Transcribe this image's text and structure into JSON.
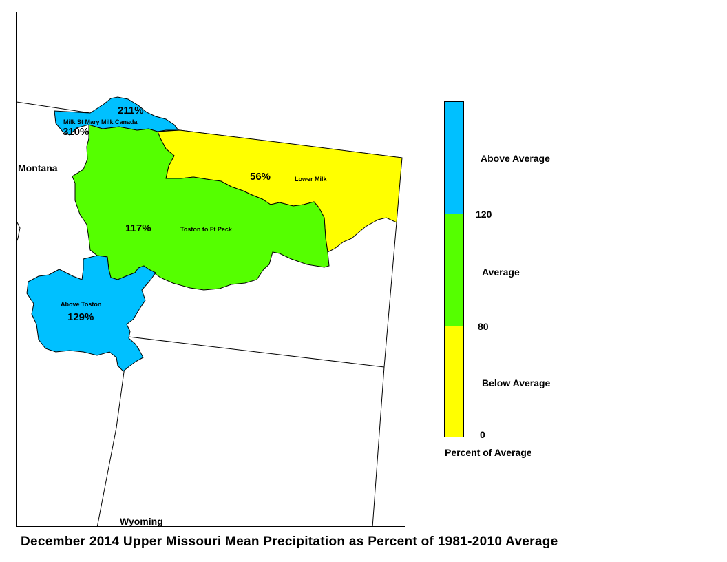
{
  "title": "December 2014 Upper Missouri Mean Precipitation as Percent of 1981-2010 Average",
  "states": {
    "montana": "Montana",
    "wyoming": "Wyoming"
  },
  "basins": {
    "milk_st_mary": {
      "name": "Milk St Mary Milk Canada",
      "pct_a": "211%",
      "pct_b": "310%",
      "class": "above"
    },
    "lower_milk": {
      "name": "Lower Milk",
      "pct": "56%",
      "class": "below"
    },
    "toston_ft_peck": {
      "name": "Toston to Ft Peck",
      "pct": "117%",
      "class": "average"
    },
    "above_toston": {
      "name": "Above Toston",
      "pct": "129%",
      "class": "above"
    }
  },
  "legend": {
    "title": "Percent of Average",
    "categories": [
      {
        "label": "Above Average",
        "color": "#00c0ff"
      },
      {
        "label": "Average",
        "color": "#55ff00"
      },
      {
        "label": "Below Average",
        "color": "#ffff00"
      }
    ],
    "breaks": [
      "120",
      "80",
      "0"
    ]
  },
  "colors": {
    "above": "#00c0ff",
    "average": "#55ff00",
    "below": "#ffff00",
    "outline": "#000000"
  }
}
